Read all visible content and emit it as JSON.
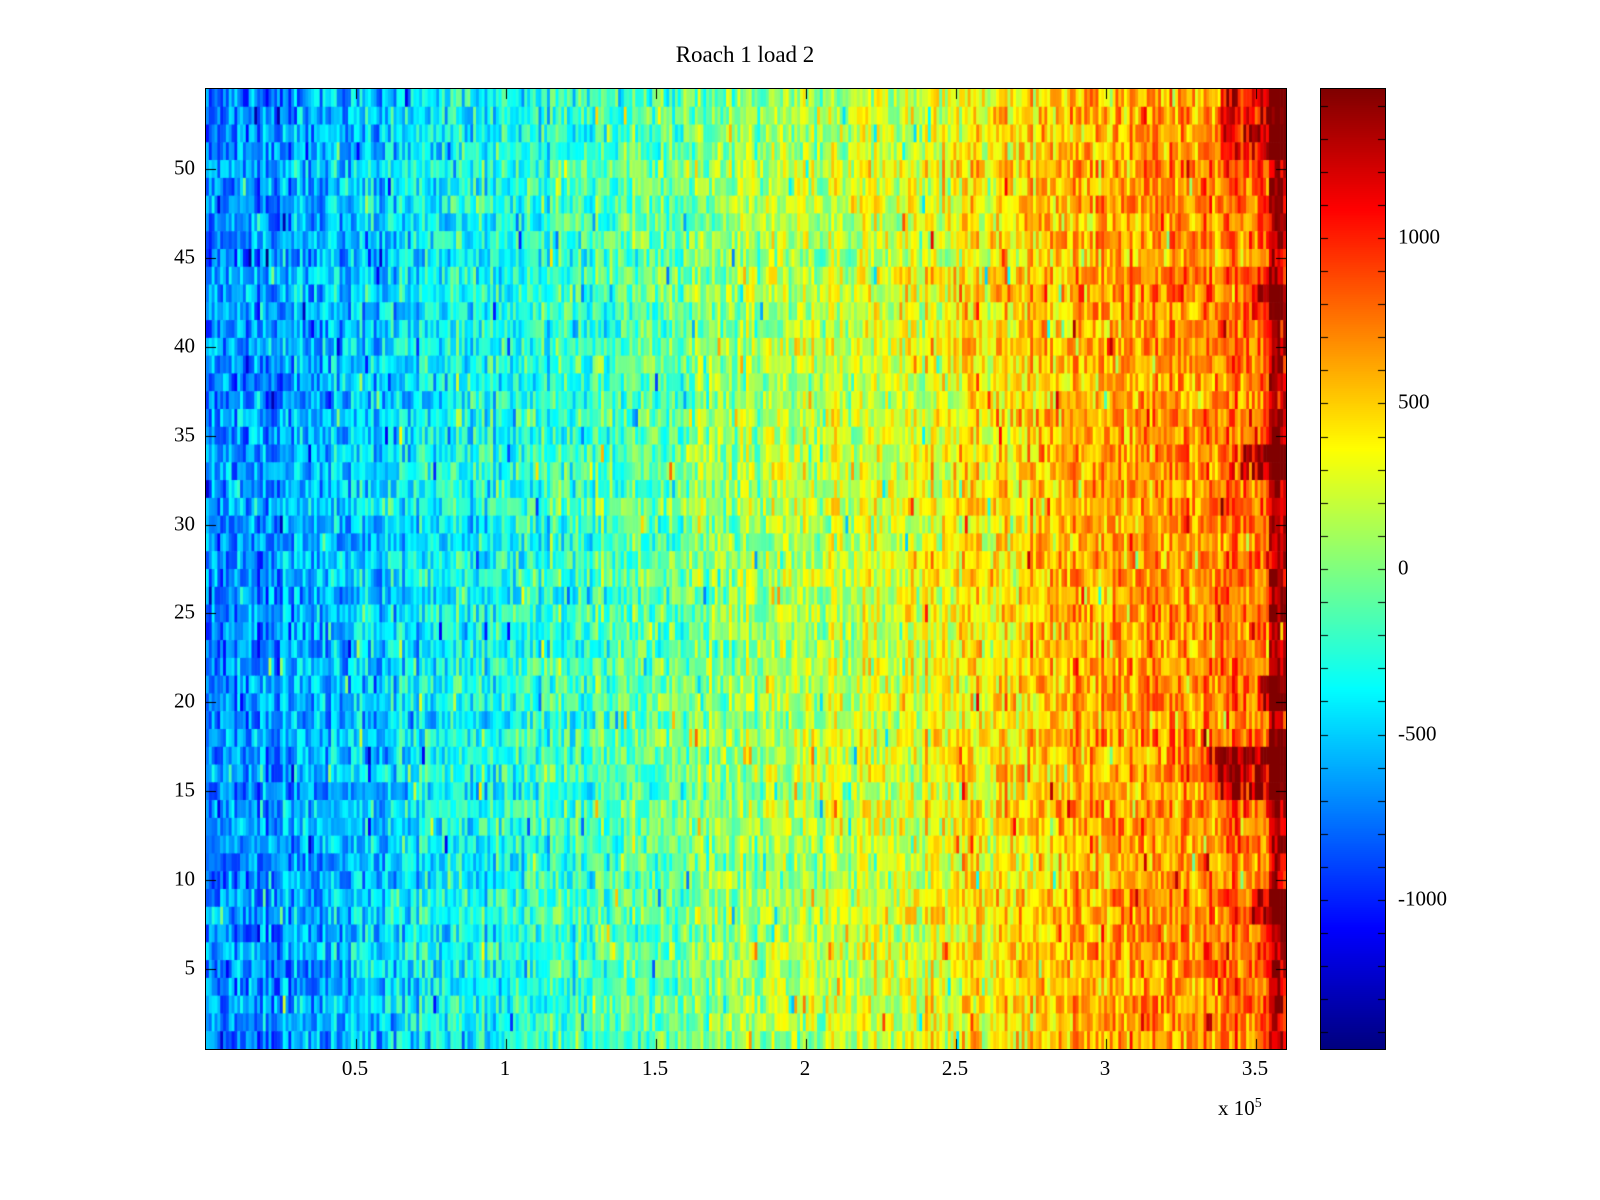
{
  "chart_data": {
    "type": "heatmap",
    "title": "Roach 1 load 2",
    "xlabel": "",
    "ylabel": "",
    "x_range": [
      0,
      360000
    ],
    "x_ticks": [
      {
        "value": 50000,
        "label": "0.5"
      },
      {
        "value": 100000,
        "label": "1"
      },
      {
        "value": 150000,
        "label": "1.5"
      },
      {
        "value": 200000,
        "label": "2"
      },
      {
        "value": 250000,
        "label": "2.5"
      },
      {
        "value": 300000,
        "label": "3"
      },
      {
        "value": 350000,
        "label": "3.5"
      }
    ],
    "x_multiplier": {
      "text": "x 10",
      "exponent": "5"
    },
    "y_range": [
      0.5,
      54.5
    ],
    "y_ticks": [
      {
        "value": 5,
        "label": "5"
      },
      {
        "value": 10,
        "label": "10"
      },
      {
        "value": 15,
        "label": "15"
      },
      {
        "value": 20,
        "label": "20"
      },
      {
        "value": 25,
        "label": "25"
      },
      {
        "value": 30,
        "label": "30"
      },
      {
        "value": 35,
        "label": "35"
      },
      {
        "value": 40,
        "label": "40"
      },
      {
        "value": 45,
        "label": "45"
      },
      {
        "value": 50,
        "label": "50"
      }
    ],
    "value_range": [
      -1450,
      1450
    ],
    "colormap": "jet",
    "grid": false,
    "colorbar": {
      "position": "right",
      "ticks": [
        {
          "value": 1000,
          "label": "1000"
        },
        {
          "value": 500,
          "label": "500"
        },
        {
          "value": 0,
          "label": "0"
        },
        {
          "value": -500,
          "label": "-500"
        },
        {
          "value": -1000,
          "label": "-1000"
        }
      ],
      "minor_tick_step": 100
    },
    "heatmap": {
      "description": "Noisy spectrogram-like image, 54 rows by ~380 time columns; values rise roughly linearly from about -720 at the left edge to about +830 at the right edge with ~±300 uniform noise, sparse high-amplitude speckles, and a saturated dark-red band at the extreme right edge plus localized dark-red hot spots near rows 8-9, 15-17, 20-21, 33-34, 42-43 and 51-54 at the right side.",
      "rows": 54,
      "cols": 380,
      "seed": 42,
      "base_left": -720,
      "base_right": 830,
      "noise_amplitude": 300,
      "col_noise": 130,
      "row_noise": 60,
      "speckle_prob": 0.07,
      "speckle_amplitude": 520,
      "edge_boost": {
        "start_frac": 0.985,
        "value": 620
      },
      "hot_spots": [
        {
          "row_min": 15,
          "row_max": 17,
          "col_frac_min": 0.93,
          "col_frac_max": 1.0,
          "boost": 650
        },
        {
          "row_min": 20,
          "row_max": 21,
          "col_frac_min": 0.975,
          "col_frac_max": 1.0,
          "boost": 500
        },
        {
          "row_min": 33,
          "row_max": 34,
          "col_frac_min": 0.96,
          "col_frac_max": 1.0,
          "boost": 550
        },
        {
          "row_min": 42,
          "row_max": 43,
          "col_frac_min": 0.97,
          "col_frac_max": 1.0,
          "boost": 500
        },
        {
          "row_min": 8,
          "row_max": 9,
          "col_frac_min": 0.97,
          "col_frac_max": 1.0,
          "boost": 500
        },
        {
          "row_min": 51,
          "row_max": 54,
          "col_frac_min": 0.94,
          "col_frac_max": 1.0,
          "boost": 520
        }
      ]
    }
  }
}
